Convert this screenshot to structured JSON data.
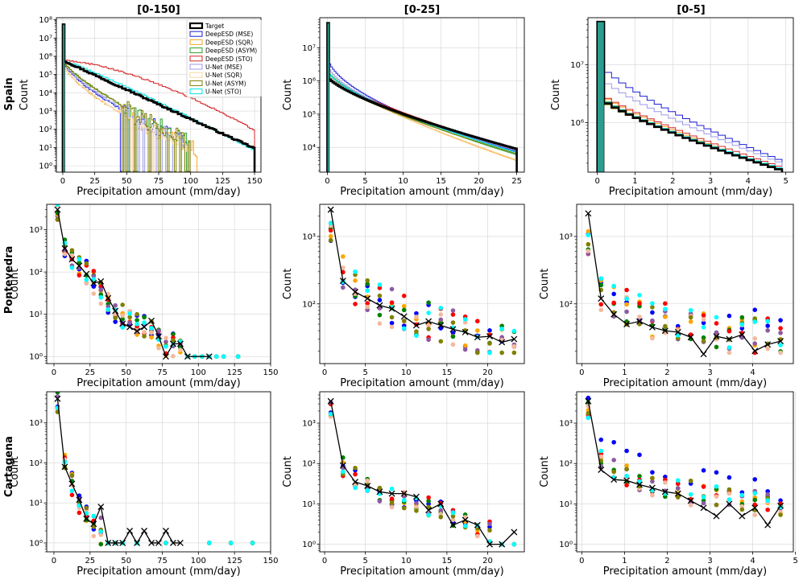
{
  "chart_data": {
    "type": "histogram-grid",
    "column_titles": [
      "[0-150]",
      "[0-25]",
      "[0-5]"
    ],
    "row_labels": [
      "Spain",
      "Pontevedra",
      "Cartagena"
    ],
    "ylabel": "Count",
    "xlabel": "Precipitation amount (mm/day)",
    "legend": [
      {
        "name": "Target",
        "color": "#000000",
        "bold": true
      },
      {
        "name": "DeepESD (MSE)",
        "color": "#1f1fd6"
      },
      {
        "name": "DeepESD (SQR)",
        "color": "#f5a623"
      },
      {
        "name": "DeepESD (ASYM)",
        "color": "#2ca02c"
      },
      {
        "name": "DeepESD (STO)",
        "color": "#d62728"
      },
      {
        "name": "U-Net (MSE)",
        "color": "#9a9ae8"
      },
      {
        "name": "U-Net (SQR)",
        "color": "#f6d7a6"
      },
      {
        "name": "U-Net (ASYM)",
        "color": "#808000"
      },
      {
        "name": "U-Net (STO)",
        "color": "#00e5e5"
      }
    ],
    "scatter_colors": [
      "#0000ff",
      "#ffa500",
      "#008000",
      "#ff0000",
      "#8c5aa0",
      "#f4b99e",
      "#808000",
      "#00ffff"
    ],
    "panels": [
      {
        "id": "spain-0-150",
        "kind": "hist",
        "xlim": [
          -5,
          155
        ],
        "ylim": [
          0.45,
          130000000.0
        ],
        "xticks": [
          0,
          25,
          50,
          75,
          100,
          125,
          150
        ],
        "yticks": [
          {
            "v": 1,
            "t": "10⁰"
          },
          {
            "v": 10,
            "t": "10¹"
          },
          {
            "v": 100,
            "t": "10²"
          },
          {
            "v": 1000,
            "t": "10³"
          },
          {
            "v": 10000,
            "t": "10⁴"
          },
          {
            "v": 100000,
            "t": "10⁵"
          },
          {
            "v": 1000000,
            "t": "10⁶"
          },
          {
            "v": 10000000,
            "t": "10⁷"
          },
          {
            "v": 100000000,
            "t": "10⁸"
          }
        ],
        "spike": 55000000.0,
        "xmax": 150,
        "ymax": 600000.0,
        "ends": [
          9,
          0.5,
          0.5,
          0.5,
          90,
          0.5,
          0.5,
          0.5,
          7
        ],
        "cut": [
          150,
          100,
          105,
          100,
          150,
          95,
          100,
          100,
          150
        ],
        "curv": [
          1.0,
          1.45,
          1.6,
          1.3,
          0.65,
          1.4,
          1.6,
          1.3,
          0.9
        ]
      },
      {
        "id": "spain-0-25",
        "kind": "hist",
        "xlim": [
          -1,
          26
        ],
        "ylim": [
          1800,
          80000000.0
        ],
        "xticks": [
          0,
          5,
          10,
          15,
          20,
          25
        ],
        "yticks": [
          {
            "v": 10000,
            "t": "10⁴"
          },
          {
            "v": 100000,
            "t": "10⁵"
          },
          {
            "v": 1000000,
            "t": "10⁶"
          },
          {
            "v": 10000000,
            "t": "10⁷"
          }
        ],
        "spike": 55000000.0,
        "xmax": 25,
        "starts": [
          1400000.0,
          6000000.0,
          1600000.0,
          2200000.0,
          1600000.0,
          3500000.0,
          1600000.0,
          1500000.0,
          2000000.0
        ],
        "ends": [
          9000,
          7500,
          4000,
          6000,
          8500,
          8000,
          4200,
          6500,
          7000
        ],
        "curv": [
          1.4,
          1.8,
          1.3,
          1.45,
          1.35,
          1.7,
          1.3,
          1.4,
          1.45
        ]
      },
      {
        "id": "spain-0-5",
        "kind": "hist",
        "xlim": [
          -0.25,
          5.2
        ],
        "ylim": [
          140000.0,
          65000000.0
        ],
        "xticks": [
          0,
          1,
          2,
          3,
          4,
          5
        ],
        "yticks": [
          {
            "v": 1000000,
            "t": "10⁶"
          },
          {
            "v": 10000000,
            "t": "10⁷"
          }
        ],
        "spike": 55000000.0,
        "xmax": 4.9,
        "starts": [
          3000000.0,
          12000000.0,
          3500000.0,
          3200000.0,
          3600000.0,
          7000000.0,
          3000000.0,
          2800000.0,
          3100000.0
        ],
        "ends": [
          150000.0,
          220000.0,
          150000.0,
          155000.0,
          170000.0,
          200000.0,
          150000.0,
          160000.0,
          160000.0
        ],
        "curv": [
          1.3,
          1.35,
          1.25,
          1.3,
          1.25,
          1.3,
          1.25,
          1.3,
          1.3
        ]
      },
      {
        "id": "pontevedra-0-150",
        "kind": "scatter",
        "xlim": [
          -5,
          150
        ],
        "ylim": [
          0.68,
          4000
        ],
        "xticks": [
          0,
          25,
          50,
          75,
          100,
          125,
          150
        ],
        "yticks": [
          {
            "v": 1,
            "t": "10⁰"
          },
          {
            "v": 10,
            "t": "10¹"
          },
          {
            "v": 100,
            "t": "10²"
          },
          {
            "v": 1000,
            "t": "10³"
          }
        ],
        "target_x": [
          2.5,
          7.5,
          12.5,
          17.5,
          22.5,
          27.5,
          32.5,
          37.5,
          42.5,
          47.5,
          52.5,
          57.5,
          62.5,
          67.5,
          72.5,
          77.5,
          82.5,
          87.5,
          92.5,
          107.5
        ],
        "target_y": [
          3000,
          360,
          200,
          140,
          90,
          55,
          60,
          24,
          12,
          6,
          5,
          4,
          5,
          7,
          3,
          1,
          2,
          2,
          1,
          1
        ],
        "scatter_x": [
          2.5,
          7.5,
          12.5,
          17.5,
          22.5,
          27.5,
          32.5,
          37.5,
          42.5,
          47.5,
          52.5,
          57.5,
          62.5,
          67.5,
          72.5,
          77.5,
          82.5,
          87.5,
          92.5,
          97.5,
          102.5,
          107.5,
          112.5,
          117.5,
          127.5
        ],
        "scatter_y": [
          3000,
          400,
          230,
          150,
          100,
          60,
          40,
          20,
          12,
          9,
          8,
          6,
          5,
          4,
          3,
          2,
          2,
          2,
          1,
          1,
          1,
          1,
          1,
          1,
          1
        ],
        "seed": 11
      },
      {
        "id": "pontevedra-0-25",
        "kind": "scatter",
        "xlim": [
          -0.6,
          24.5
        ],
        "ylim": [
          13,
          3000
        ],
        "xticks": [
          0,
          5,
          10,
          15,
          20
        ],
        "yticks": [
          {
            "v": 100,
            "t": "10²"
          },
          {
            "v": 1000,
            "t": "10³"
          }
        ],
        "target_x": [
          0.75,
          2.25,
          3.75,
          5.25,
          6.75,
          8.25,
          9.75,
          11.25,
          12.75,
          14.25,
          15.75,
          17.25,
          18.75,
          20.25,
          21.75,
          23.25
        ],
        "target_y": [
          2500,
          220,
          150,
          120,
          95,
          85,
          65,
          48,
          55,
          48,
          42,
          38,
          32,
          33,
          27,
          30
        ],
        "scatter_x": [
          0.75,
          2.25,
          3.75,
          5.25,
          6.75,
          8.25,
          9.75,
          11.25,
          12.75,
          14.25,
          15.75,
          17.25,
          18.75,
          20.25,
          21.75,
          23.25
        ],
        "scatter_y": [
          1200,
          300,
          180,
          140,
          110,
          90,
          75,
          62,
          55,
          48,
          42,
          38,
          33,
          30,
          27,
          26
        ],
        "seed": 23
      },
      {
        "id": "pontevedra-0-5",
        "kind": "scatter",
        "xlim": [
          -0.12,
          4.95
        ],
        "ylim": [
          13,
          3000
        ],
        "xticks": [
          0,
          1,
          2,
          3,
          4
        ],
        "yticks": [
          {
            "v": 100,
            "t": "10²"
          },
          {
            "v": 1000,
            "t": "10³"
          }
        ],
        "target_x": [
          0.15,
          0.45,
          0.75,
          1.05,
          1.35,
          1.65,
          1.95,
          2.25,
          2.55,
          2.85,
          3.15,
          3.45,
          3.75,
          4.05,
          4.35,
          4.65
        ],
        "target_y": [
          2200,
          120,
          70,
          50,
          55,
          45,
          40,
          38,
          32,
          18,
          33,
          30,
          35,
          20,
          25,
          28
        ],
        "scatter_x": [
          0.15,
          0.45,
          0.75,
          1.05,
          1.35,
          1.65,
          1.95,
          2.25,
          2.55,
          2.85,
          3.15,
          3.45,
          3.75,
          4.05,
          4.35,
          4.65
        ],
        "scatter_y": [
          1000,
          170,
          110,
          85,
          72,
          62,
          55,
          50,
          46,
          42,
          40,
          38,
          36,
          34,
          32,
          30
        ],
        "seed": 37
      },
      {
        "id": "cartagena-0-150",
        "kind": "scatter",
        "xlim": [
          -5,
          150
        ],
        "ylim": [
          0.6,
          6000
        ],
        "xticks": [
          0,
          25,
          50,
          75,
          100,
          125,
          150
        ],
        "yticks": [
          {
            "v": 1,
            "t": "10⁰"
          },
          {
            "v": 10,
            "t": "10¹"
          },
          {
            "v": 100,
            "t": "10²"
          },
          {
            "v": 1000,
            "t": "10³"
          }
        ],
        "target_x": [
          2.5,
          7.5,
          12.5,
          17.5,
          22.5,
          27.5,
          32.5,
          37.5,
          42.5,
          47.5,
          52.5,
          57.5,
          62.5,
          67.5,
          72.5,
          77.5,
          82.5,
          87.5
        ],
        "target_y": [
          4000,
          80,
          30,
          12,
          4,
          3,
          8,
          1,
          1,
          1,
          2,
          1,
          2,
          1,
          1,
          2,
          1,
          1
        ],
        "scatter_x": [
          2.5,
          7.5,
          12.5,
          17.5,
          22.5,
          27.5,
          32.5,
          37.5,
          42.5,
          47.5,
          57.5,
          77.5,
          107.5,
          122.5,
          137.5
        ],
        "scatter_y": [
          3500,
          90,
          30,
          10,
          5,
          3,
          2,
          1,
          1,
          1,
          1,
          1,
          1,
          1,
          1
        ],
        "seed": 41
      },
      {
        "id": "cartagena-0-25",
        "kind": "scatter",
        "xlim": [
          -0.6,
          24.5
        ],
        "ylim": [
          0.65,
          6000
        ],
        "xticks": [
          0,
          5,
          10,
          15,
          20
        ],
        "yticks": [
          {
            "v": 1,
            "t": "10⁰"
          },
          {
            "v": 10,
            "t": "10¹"
          },
          {
            "v": 100,
            "t": "10²"
          },
          {
            "v": 1000,
            "t": "10³"
          }
        ],
        "target_x": [
          0.75,
          2.25,
          3.75,
          5.25,
          6.75,
          8.25,
          9.75,
          11.25,
          12.75,
          14.25,
          15.75,
          17.25,
          18.75,
          20.25,
          21.75,
          23.25
        ],
        "target_y": [
          3500,
          90,
          35,
          28,
          20,
          18,
          18,
          15,
          7,
          10,
          3,
          4,
          3,
          1,
          1,
          2
        ],
        "scatter_x": [
          0.75,
          2.25,
          3.75,
          5.25,
          6.75,
          8.25,
          9.75,
          11.25,
          12.75,
          14.25,
          15.75,
          17.25,
          18.75,
          20.25,
          21.75,
          23.25
        ],
        "scatter_y": [
          2500,
          90,
          45,
          30,
          22,
          17,
          14,
          11,
          8,
          6,
          5,
          4,
          3,
          2,
          1,
          1
        ],
        "seed": 53
      },
      {
        "id": "cartagena-0-5",
        "kind": "scatter",
        "xlim": [
          -0.12,
          4.95
        ],
        "ylim": [
          0.65,
          6000
        ],
        "xticks": [
          0,
          1,
          2,
          3,
          4,
          5
        ],
        "yticks": [
          {
            "v": 1,
            "t": "10⁰"
          },
          {
            "v": 10,
            "t": "10¹"
          },
          {
            "v": 100,
            "t": "10²"
          },
          {
            "v": 1000,
            "t": "10³"
          }
        ],
        "target_x": [
          0.15,
          0.45,
          0.75,
          1.05,
          1.35,
          1.65,
          1.95,
          2.25,
          2.55,
          2.85,
          3.15,
          3.45,
          3.75,
          4.05,
          4.35,
          4.65
        ],
        "target_y": [
          3500,
          70,
          40,
          38,
          30,
          25,
          20,
          18,
          12,
          8,
          5,
          10,
          5,
          8,
          3,
          9
        ],
        "scatter_x": [
          0.15,
          0.45,
          0.75,
          1.05,
          1.35,
          1.65,
          1.95,
          2.25,
          2.55,
          2.85,
          3.15,
          3.45,
          3.75,
          4.05,
          4.35,
          4.65
        ],
        "scatter_y": [
          2500,
          150,
          80,
          55,
          42,
          34,
          28,
          24,
          20,
          17,
          15,
          13,
          12,
          11,
          10,
          9
        ],
        "seed": 67
      }
    ]
  }
}
